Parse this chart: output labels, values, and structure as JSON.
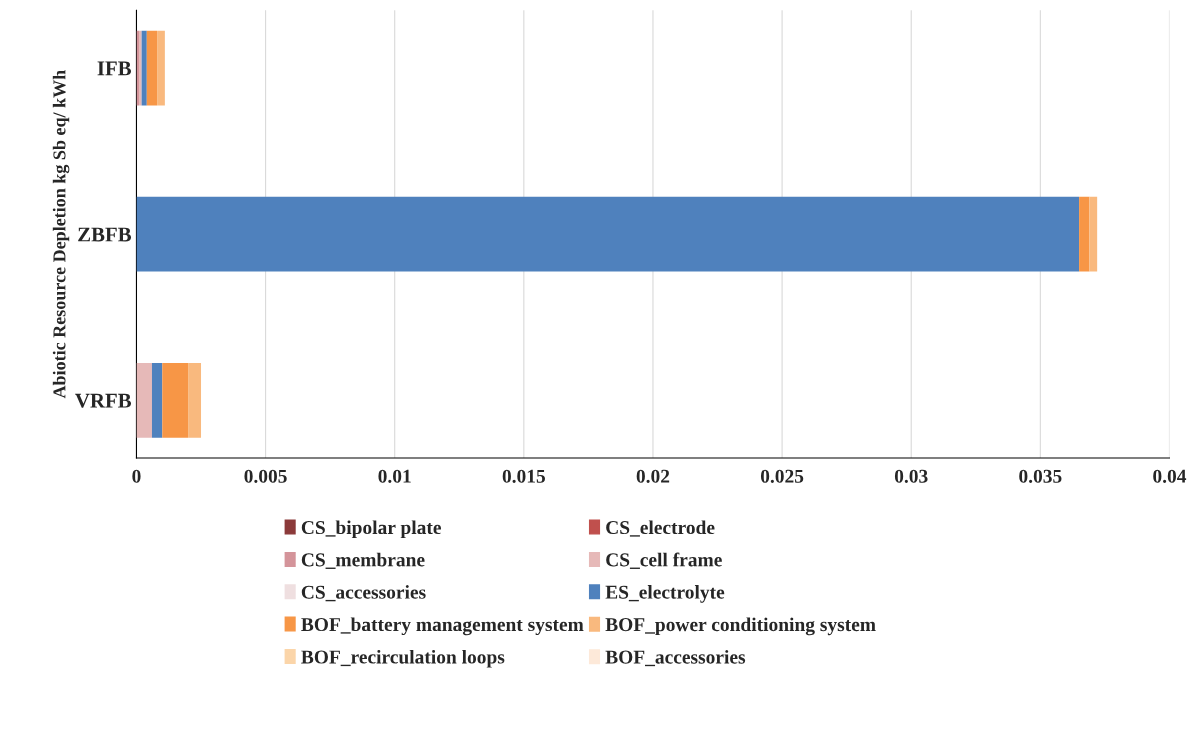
{
  "chart_data": {
    "type": "bar",
    "orientation": "horizontal",
    "stacked": true,
    "ylabel": "Abiotic Resource Depletion kg Sb eq/ kWh",
    "categories": [
      "IFB",
      "ZBFB",
      "VRFB"
    ],
    "series": [
      {
        "name": "CS_bipolar plate",
        "color": "#8b3a3a",
        "values": [
          0,
          0,
          0
        ]
      },
      {
        "name": "CS_electrode",
        "color": "#c0504d",
        "values": [
          0,
          0,
          0
        ]
      },
      {
        "name": "CS_membrane",
        "color": "#d4949a",
        "values": [
          0.0001,
          0,
          0
        ]
      },
      {
        "name": "CS_cell frame",
        "color": "#e6b9b8",
        "values": [
          0.0001,
          0,
          0.0006
        ]
      },
      {
        "name": "CS_accessories",
        "color": "#efdfe0",
        "values": [
          0,
          0,
          0
        ]
      },
      {
        "name": "ES_electrolyte",
        "color": "#4f81bd",
        "values": [
          0.0002,
          0.0365,
          0.0004
        ]
      },
      {
        "name": "BOF_battery management system",
        "color": "#f79646",
        "values": [
          0.0004,
          0.0004,
          0.001
        ]
      },
      {
        "name": "BOF_power conditioning system",
        "color": "#f9b97e",
        "values": [
          0.0003,
          0.0003,
          0.0005
        ]
      },
      {
        "name": "BOF_recirculation loops",
        "color": "#fbd5a9",
        "values": [
          0,
          0,
          0
        ]
      },
      {
        "name": "BOF_accessories",
        "color": "#fde9d9",
        "values": [
          0,
          0,
          0
        ]
      }
    ],
    "xlim": [
      0,
      0.04
    ],
    "xticks": [
      0,
      0.005,
      0.01,
      0.015,
      0.02,
      0.025,
      0.03,
      0.035,
      0.04
    ],
    "grid": "x",
    "legend": "bottom"
  }
}
